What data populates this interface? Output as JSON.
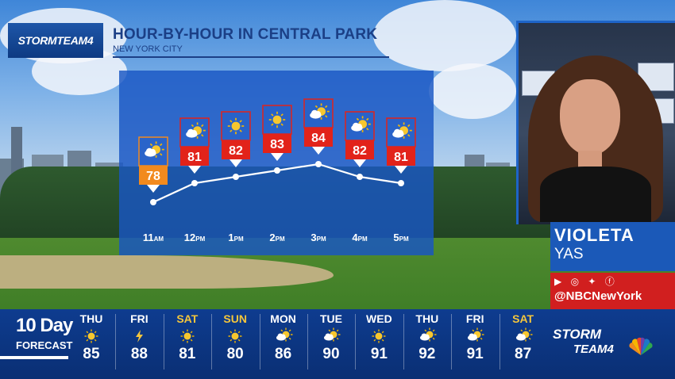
{
  "header": {
    "logo_text": "STORMTEAM4",
    "title": "HOUR-BY-HOUR IN CENTRAL PARK",
    "subtitle": "NEW YORK CITY"
  },
  "chart_data": {
    "type": "line",
    "categories": [
      "11AM",
      "12PM",
      "1PM",
      "2PM",
      "3PM",
      "4PM",
      "5PM"
    ],
    "hour_labels": [
      {
        "num": "11",
        "ampm": "AM"
      },
      {
        "num": "12",
        "ampm": "PM"
      },
      {
        "num": "1",
        "ampm": "PM"
      },
      {
        "num": "2",
        "ampm": "PM"
      },
      {
        "num": "3",
        "ampm": "PM"
      },
      {
        "num": "4",
        "ampm": "PM"
      },
      {
        "num": "5",
        "ampm": "PM"
      }
    ],
    "values": [
      78,
      81,
      82,
      83,
      84,
      82,
      81
    ],
    "icons": [
      "partly-sunny-icon",
      "partly-sunny-icon",
      "sunny-icon",
      "sunny-icon",
      "partly-sunny-icon",
      "partly-sunny-icon",
      "partly-sunny-icon"
    ],
    "first_color": "#f28a1e",
    "tag_color": "#e2231a"
  },
  "presenter": {
    "first_name": "VIOLETA",
    "last_name": "YAS",
    "social_icons": "▶ ◎ ✦ ⓕ",
    "handle": "@NBCNewYork"
  },
  "forecast": {
    "label_top": "10 Day",
    "label_bottom": "FORECAST",
    "days": [
      {
        "day": "THU",
        "temp": "85",
        "icon": "sunny-icon",
        "weekend": false
      },
      {
        "day": "FRI",
        "temp": "88",
        "icon": "lightning-icon",
        "weekend": false
      },
      {
        "day": "SAT",
        "temp": "81",
        "icon": "sunny-icon",
        "weekend": true
      },
      {
        "day": "SUN",
        "temp": "80",
        "icon": "sunny-icon",
        "weekend": true
      },
      {
        "day": "MON",
        "temp": "86",
        "icon": "partly-sunny-icon",
        "weekend": false
      },
      {
        "day": "TUE",
        "temp": "90",
        "icon": "partly-sunny-icon",
        "weekend": false
      },
      {
        "day": "WED",
        "temp": "91",
        "icon": "sunny-icon",
        "weekend": false
      },
      {
        "day": "THU",
        "temp": "92",
        "icon": "partly-sunny-icon",
        "weekend": false
      },
      {
        "day": "FRI",
        "temp": "91",
        "icon": "partly-sunny-icon",
        "weekend": false
      },
      {
        "day": "SAT",
        "temp": "87",
        "icon": "partly-sunny-icon",
        "weekend": true
      }
    ]
  },
  "branding": {
    "storm": "STORM",
    "team": "TEAM4"
  }
}
